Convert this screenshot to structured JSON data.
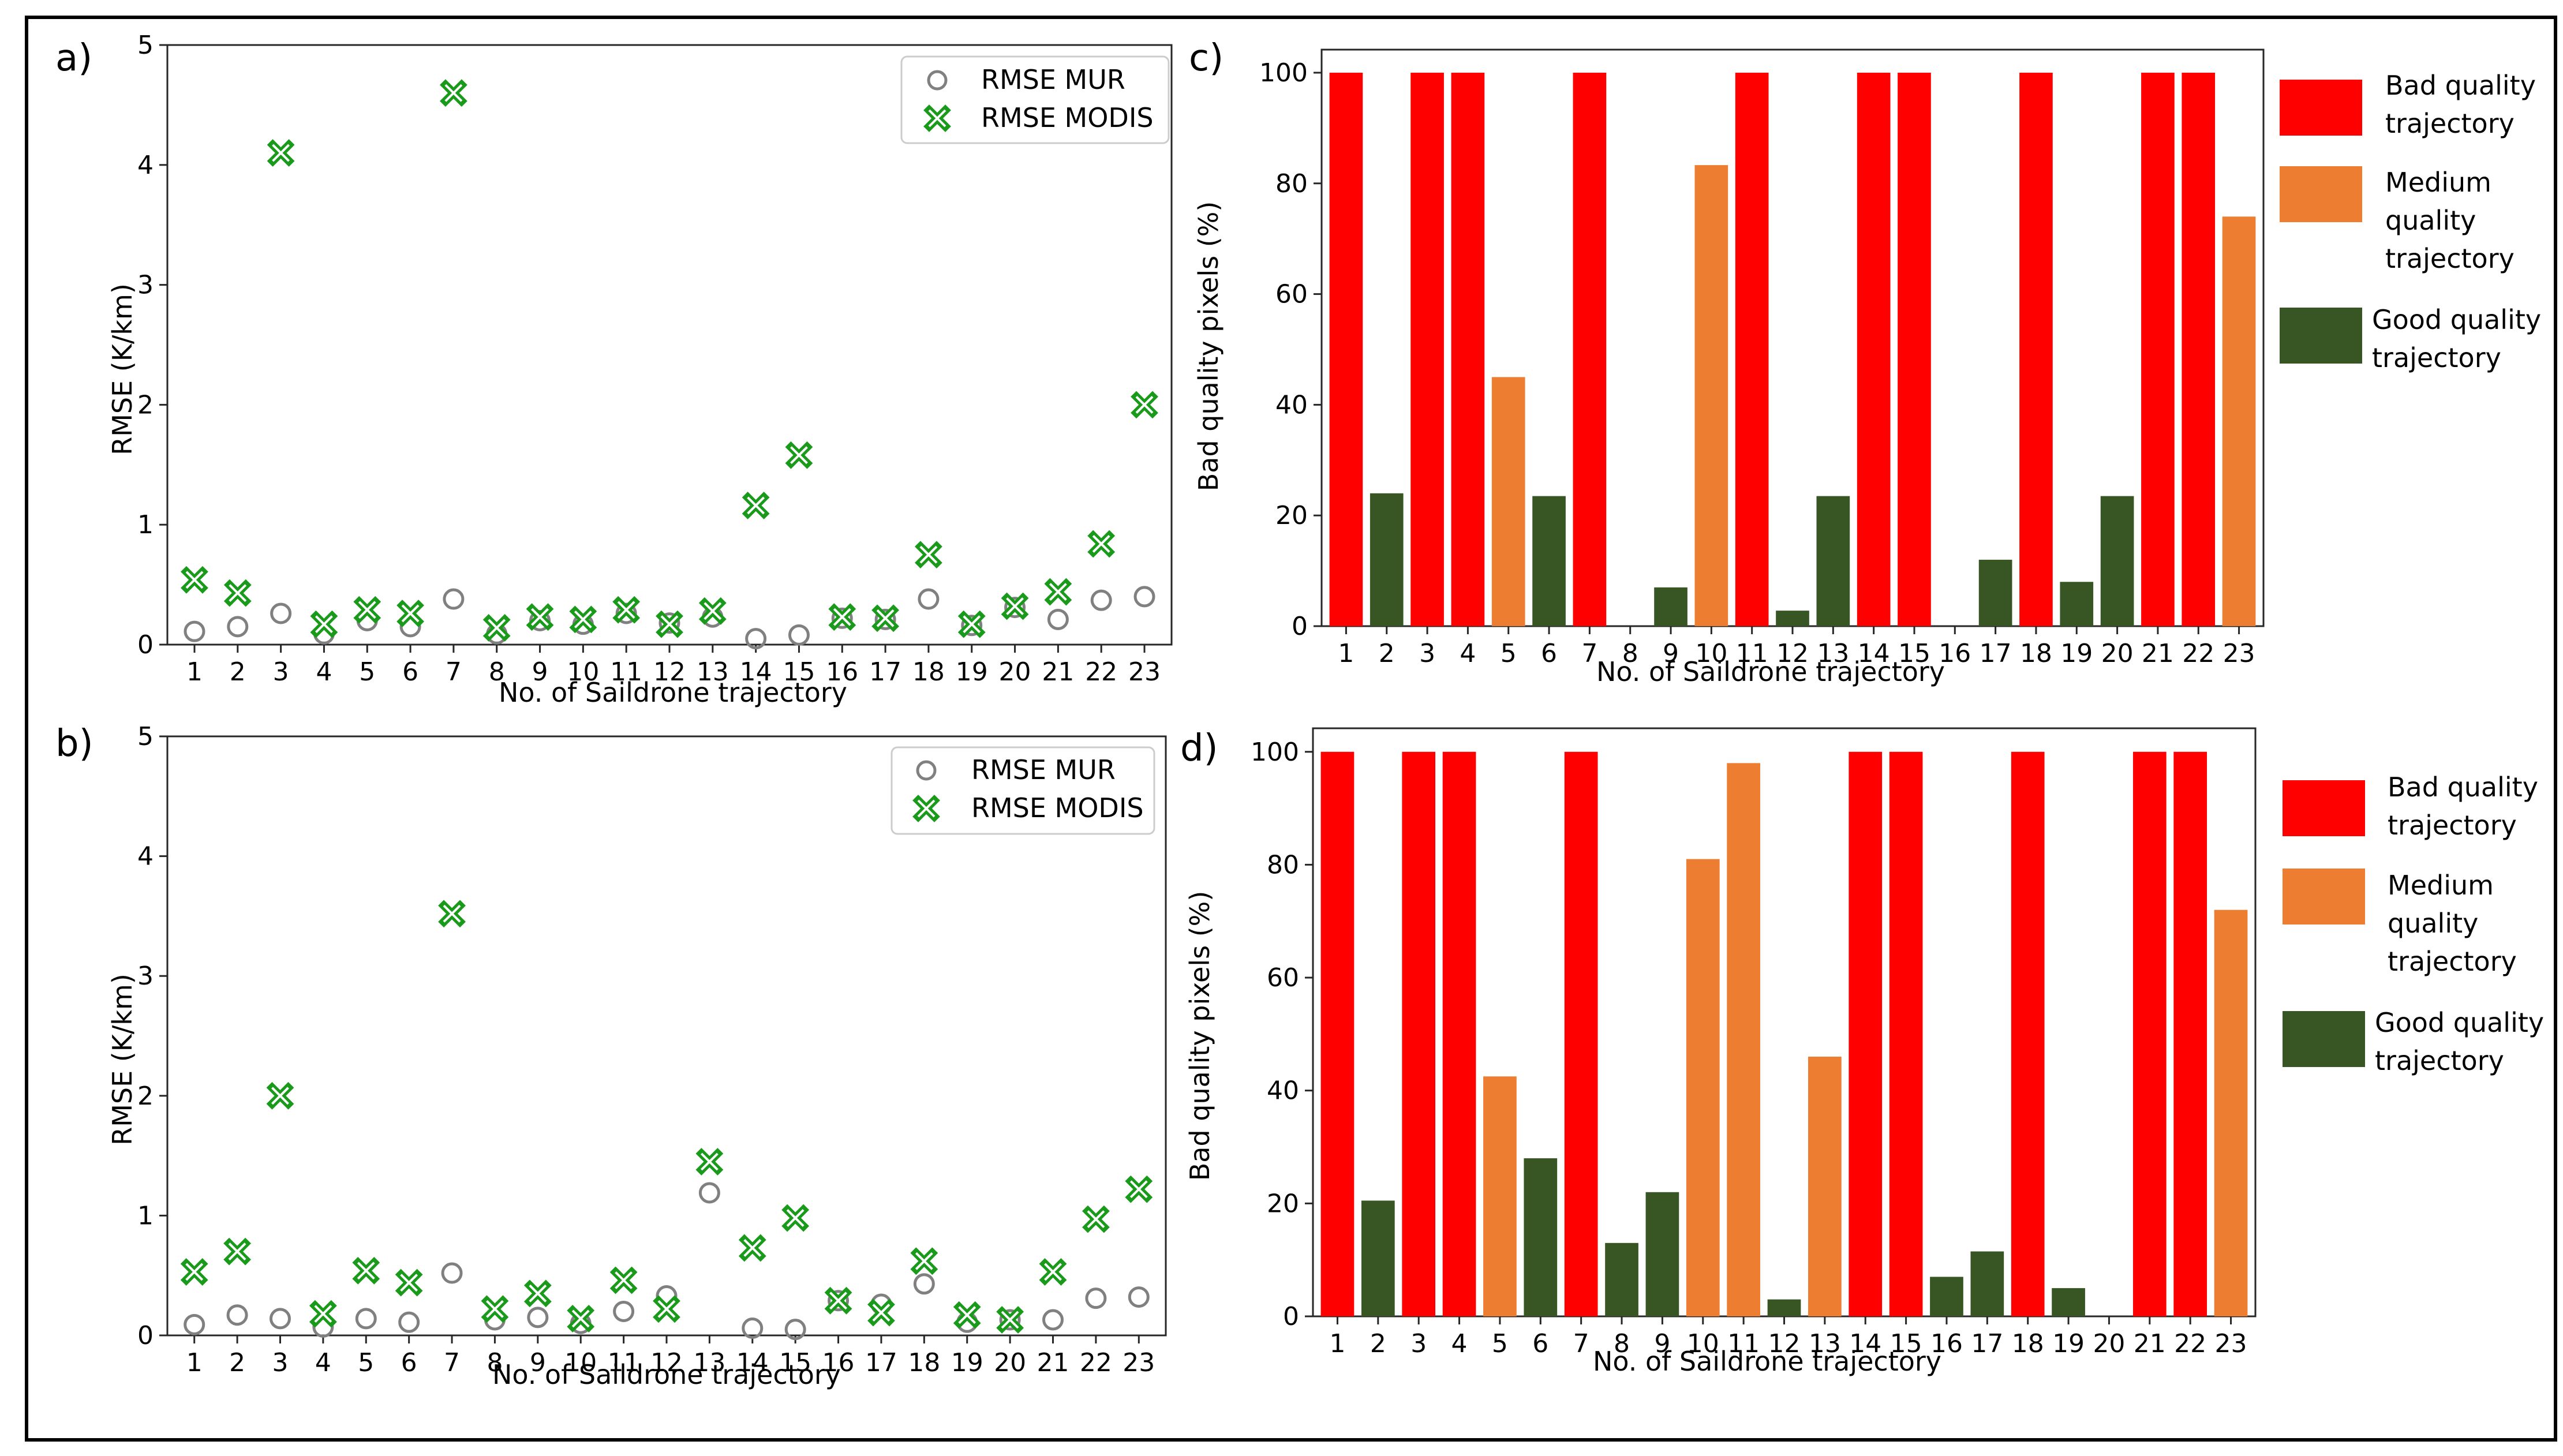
{
  "colors": {
    "mur_marker": "#808080",
    "modis_marker": "#1a9a1a",
    "bad": "#ff0000",
    "medium": "#ed7d31",
    "good": "#375623",
    "frame": "#000000",
    "axis": "#262626"
  },
  "chart_data": [
    {
      "id": "a",
      "panel_label": "a)",
      "type": "scatter",
      "xlabel": "No. of Saildrone trajectory",
      "ylabel": "RMSE (K/km)",
      "ylim": [
        0,
        5
      ],
      "yticks": [
        "0",
        "1",
        "2",
        "3",
        "4",
        "5"
      ],
      "categories": [
        "1",
        "2",
        "3",
        "4",
        "5",
        "6",
        "7",
        "8",
        "9",
        "10",
        "11",
        "12",
        "13",
        "14",
        "15",
        "16",
        "17",
        "18",
        "19",
        "20",
        "21",
        "22",
        "23"
      ],
      "series": [
        {
          "name": "RMSE MUR",
          "marker": "circle",
          "values": [
            0.11,
            0.15,
            0.26,
            0.09,
            0.2,
            0.15,
            0.38,
            0.09,
            0.2,
            0.17,
            0.26,
            0.18,
            0.23,
            0.05,
            0.08,
            0.22,
            0.21,
            0.38,
            0.16,
            0.31,
            0.21,
            0.37,
            0.4
          ]
        },
        {
          "name": "RMSE MODIS",
          "marker": "x",
          "values": [
            0.54,
            0.43,
            4.1,
            0.17,
            0.29,
            0.26,
            4.6,
            0.14,
            0.23,
            0.21,
            0.29,
            0.17,
            0.28,
            1.16,
            1.58,
            0.23,
            0.22,
            0.75,
            0.17,
            0.32,
            0.44,
            0.84,
            2.0
          ]
        }
      ],
      "legend": [
        "RMSE MUR",
        "RMSE MODIS"
      ],
      "legend_position": "top-right"
    },
    {
      "id": "b",
      "panel_label": "b)",
      "type": "scatter",
      "xlabel": "No. of Saildrone trajectory",
      "ylabel": "RMSE (K/km)",
      "ylim": [
        0,
        5
      ],
      "yticks": [
        "0",
        "1",
        "2",
        "3",
        "4",
        "5"
      ],
      "categories": [
        "1",
        "2",
        "3",
        "4",
        "5",
        "6",
        "7",
        "8",
        "9",
        "10",
        "11",
        "12",
        "13",
        "14",
        "15",
        "16",
        "17",
        "18",
        "19",
        "20",
        "21",
        "22",
        "23"
      ],
      "series": [
        {
          "name": "RMSE MUR",
          "marker": "circle",
          "values": [
            0.09,
            0.17,
            0.14,
            0.07,
            0.14,
            0.11,
            0.52,
            0.13,
            0.15,
            0.1,
            0.2,
            0.33,
            1.19,
            0.06,
            0.05,
            0.29,
            0.26,
            0.43,
            0.11,
            0.13,
            0.13,
            0.31,
            0.32
          ]
        },
        {
          "name": "RMSE MODIS",
          "marker": "x",
          "values": [
            0.53,
            0.7,
            2.0,
            0.18,
            0.54,
            0.44,
            3.52,
            0.22,
            0.35,
            0.14,
            0.46,
            0.22,
            1.45,
            0.73,
            0.98,
            0.29,
            0.19,
            0.62,
            0.17,
            0.13,
            0.53,
            0.97,
            1.22
          ]
        }
      ],
      "legend": [
        "RMSE MUR",
        "RMSE MODIS"
      ],
      "legend_position": "top-right"
    },
    {
      "id": "c",
      "panel_label": "c)",
      "type": "bar",
      "xlabel": "No. of Saildrone trajectory",
      "ylabel": "Bad quality pixels (%)",
      "ylim": [
        0,
        100
      ],
      "yticks": [
        "0",
        "20",
        "40",
        "60",
        "80",
        "100"
      ],
      "categories": [
        "1",
        "2",
        "3",
        "4",
        "5",
        "6",
        "7",
        "8",
        "9",
        "10",
        "11",
        "12",
        "13",
        "14",
        "15",
        "16",
        "17",
        "18",
        "19",
        "20",
        "21",
        "22",
        "23"
      ],
      "values": [
        100,
        24,
        100,
        100,
        45,
        23.5,
        100,
        0,
        7,
        83.3,
        100,
        2.8,
        23.5,
        100,
        100,
        0,
        12,
        100,
        8,
        23.5,
        100,
        100,
        74
      ],
      "quality": [
        "bad",
        "good",
        "bad",
        "bad",
        "medium",
        "good",
        "bad",
        "good",
        "good",
        "medium",
        "bad",
        "good",
        "good",
        "bad",
        "bad",
        "good",
        "good",
        "bad",
        "good",
        "good",
        "bad",
        "bad",
        "medium"
      ],
      "legend": [
        {
          "key": "bad",
          "lines": [
            "Bad quality",
            "trajectory"
          ]
        },
        {
          "key": "medium",
          "lines": [
            "Medium",
            "quality",
            "trajectory"
          ]
        },
        {
          "key": "good",
          "lines": [
            "Good quality",
            "trajectory"
          ]
        }
      ]
    },
    {
      "id": "d",
      "panel_label": "d)",
      "type": "bar",
      "xlabel": "No. of Saildrone trajectory",
      "ylabel": "Bad quality pixels (%)",
      "ylim": [
        0,
        100
      ],
      "yticks": [
        "0",
        "20",
        "40",
        "60",
        "80",
        "100"
      ],
      "categories": [
        "1",
        "2",
        "3",
        "4",
        "5",
        "6",
        "7",
        "8",
        "9",
        "10",
        "11",
        "12",
        "13",
        "14",
        "15",
        "16",
        "17",
        "18",
        "19",
        "20",
        "21",
        "22",
        "23"
      ],
      "values": [
        100,
        20.5,
        100,
        100,
        42.5,
        28,
        100,
        13,
        22,
        81,
        98,
        3,
        46,
        100,
        100,
        7,
        11.5,
        100,
        5,
        0,
        100,
        100,
        72
      ],
      "quality": [
        "bad",
        "good",
        "bad",
        "bad",
        "medium",
        "good",
        "bad",
        "good",
        "good",
        "medium",
        "medium",
        "good",
        "medium",
        "bad",
        "bad",
        "good",
        "good",
        "bad",
        "good",
        "good",
        "bad",
        "bad",
        "medium"
      ],
      "legend": [
        {
          "key": "bad",
          "lines": [
            "Bad quality",
            "trajectory"
          ]
        },
        {
          "key": "medium",
          "lines": [
            "Medium",
            "quality",
            "trajectory"
          ]
        },
        {
          "key": "good",
          "lines": [
            "Good quality",
            "trajectory"
          ]
        }
      ]
    }
  ]
}
